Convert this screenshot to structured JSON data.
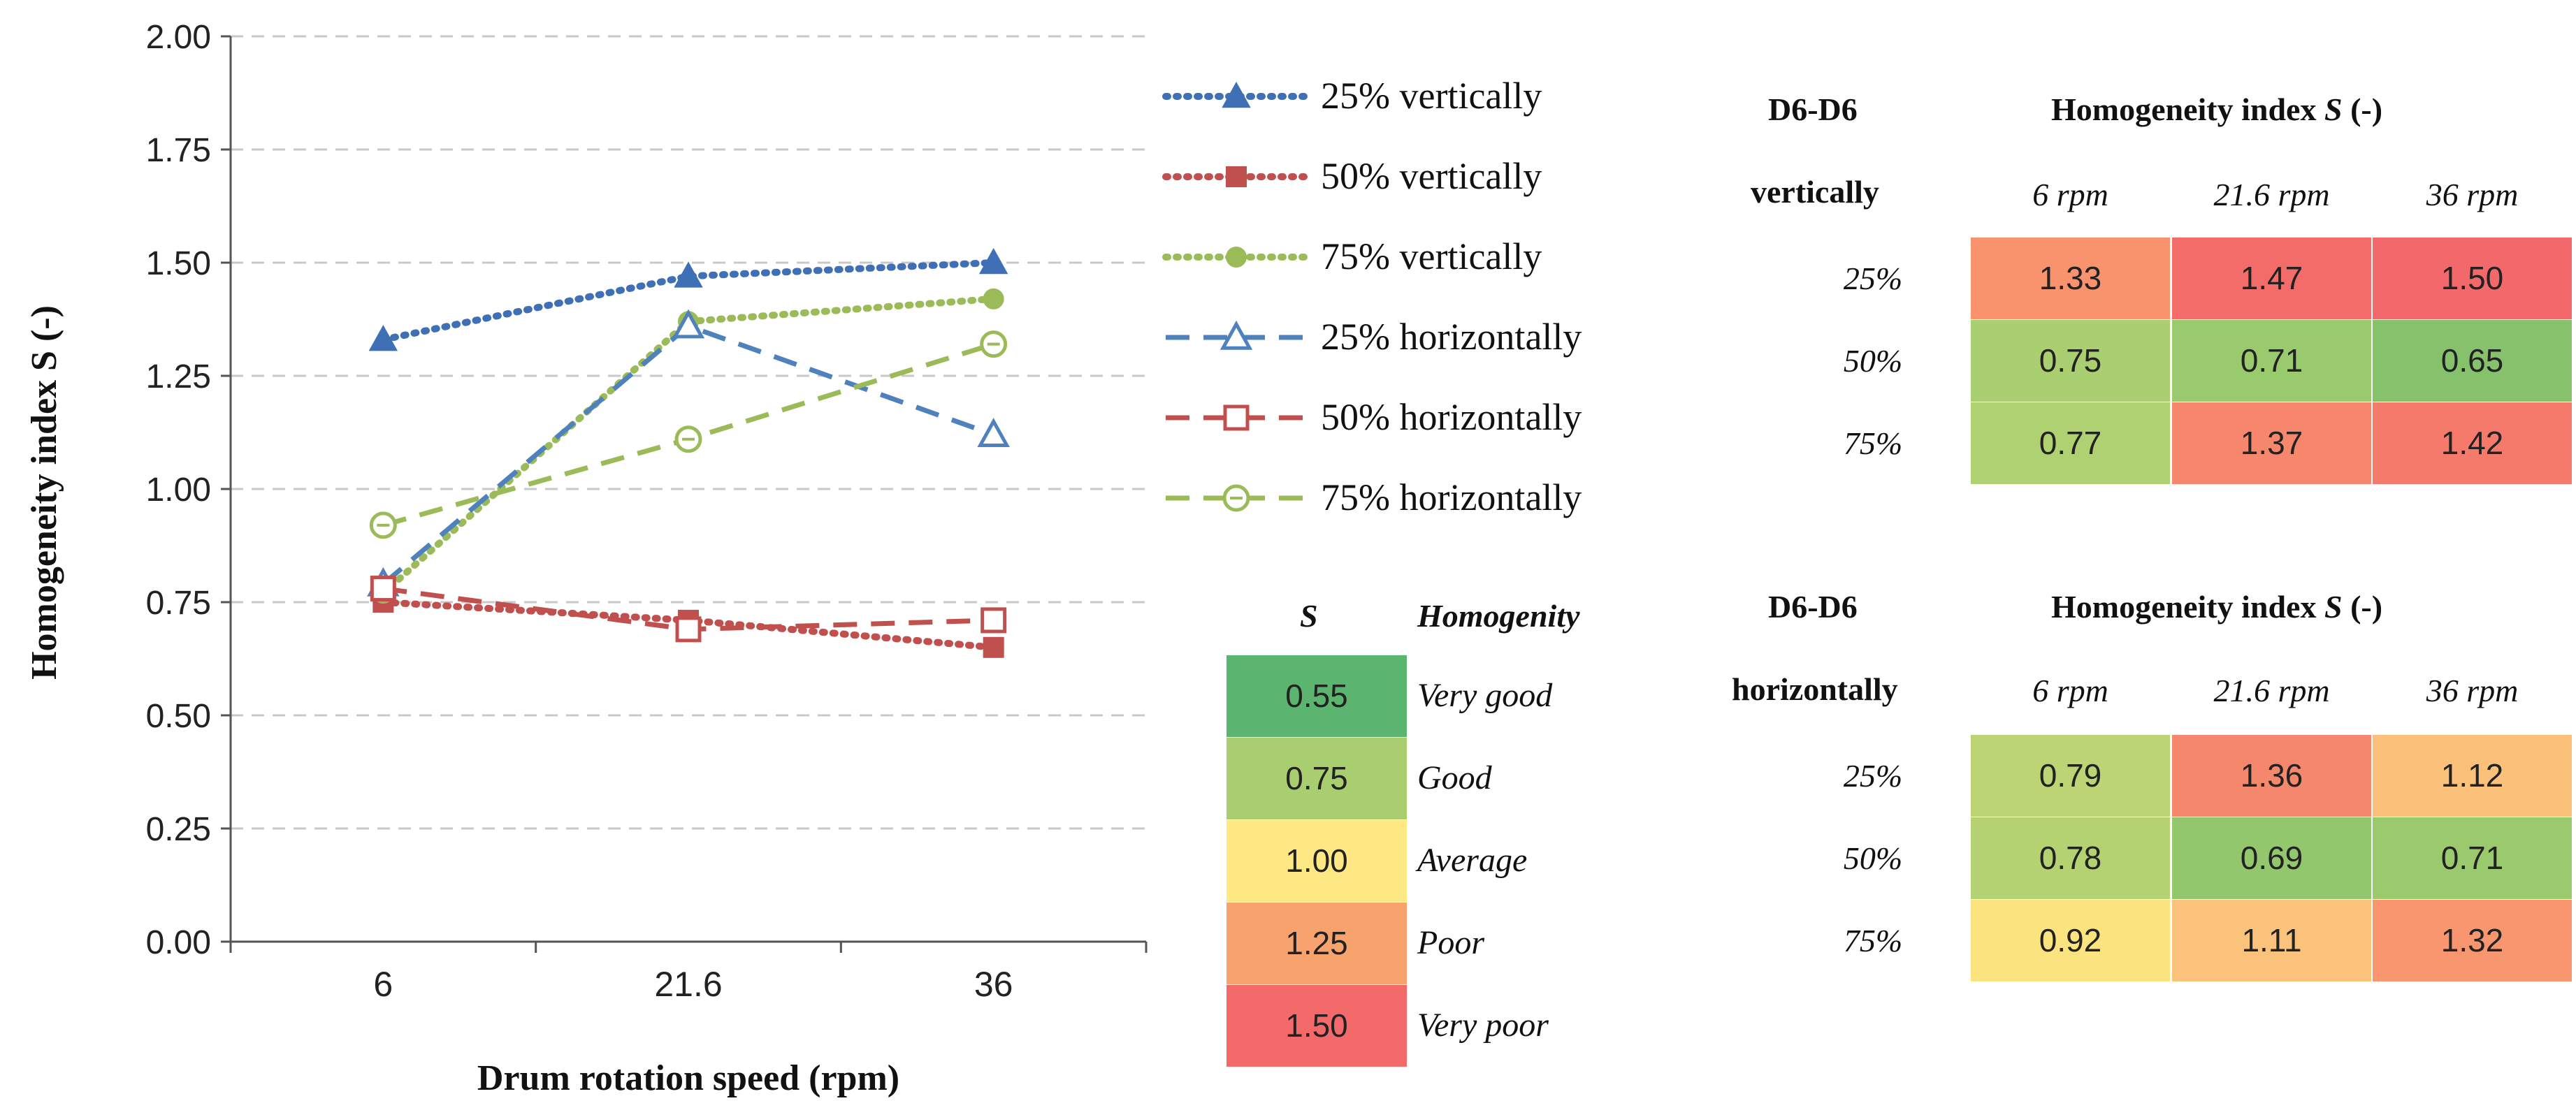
{
  "chart_data": {
    "type": "line",
    "title": "",
    "xlabel": "Drum rotation speed (rpm)",
    "ylabel": "Homogeneity index S (-)",
    "categories": [
      "6",
      "21.6",
      "36"
    ],
    "ylim": [
      0,
      2
    ],
    "yticks": [
      "0.00",
      "0.25",
      "0.50",
      "0.75",
      "1.00",
      "1.25",
      "1.50",
      "1.75",
      "2.00"
    ],
    "grid": "horizontal dashed",
    "legend_position": "right",
    "series": [
      {
        "name": "25% vertically",
        "values": [
          1.33,
          1.47,
          1.5
        ],
        "color": "#3F6FB5",
        "dash": "dotted",
        "marker": "triangle-filled"
      },
      {
        "name": "50% vertically",
        "values": [
          0.75,
          0.71,
          0.65
        ],
        "color": "#C0504D",
        "dash": "dotted",
        "marker": "square-filled"
      },
      {
        "name": "75% vertically",
        "values": [
          0.77,
          1.37,
          1.42
        ],
        "color": "#9BBB59",
        "dash": "dotted",
        "marker": "circle-filled"
      },
      {
        "name": "25% horizontally",
        "values": [
          0.79,
          1.36,
          1.12
        ],
        "color": "#4F81BD",
        "dash": "dashed",
        "marker": "triangle-open"
      },
      {
        "name": "50% horizontally",
        "values": [
          0.78,
          0.69,
          0.71
        ],
        "color": "#C0504D",
        "dash": "dashed",
        "marker": "square-open"
      },
      {
        "name": "75% horizontally",
        "values": [
          0.92,
          1.11,
          1.32
        ],
        "color": "#9BBB59",
        "dash": "dashed",
        "marker": "circle-open"
      }
    ]
  },
  "scale": {
    "header_s": "S",
    "header_label": "Homogenity",
    "rows": [
      {
        "value": "0.55",
        "label": "Very good",
        "color": "#5BB56E"
      },
      {
        "value": "0.75",
        "label": "Good",
        "color": "#A9CE6F"
      },
      {
        "value": "1.00",
        "label": "Average",
        "color": "#FDE883"
      },
      {
        "value": "1.25",
        "label": "Poor",
        "color": "#F8A26E"
      },
      {
        "value": "1.50",
        "label": "Very poor",
        "color": "#F46A6B"
      }
    ]
  },
  "table_vertical": {
    "label1": "D6-D6",
    "label2": "vertically",
    "title_prefix": "Homogeneity index ",
    "title_sym": "S",
    "title_suffix": " (-)",
    "columns": [
      "6 rpm",
      "21.6 rpm",
      "36 rpm"
    ],
    "rows": [
      {
        "label": "25%",
        "cells": [
          {
            "v": "1.33",
            "c": "#F8936E"
          },
          {
            "v": "1.47",
            "c": "#F46C6A"
          },
          {
            "v": "1.50",
            "c": "#F3686A"
          }
        ]
      },
      {
        "label": "50%",
        "cells": [
          {
            "v": "0.75",
            "c": "#A9CF70"
          },
          {
            "v": "0.71",
            "c": "#9ACA6E"
          },
          {
            "v": "0.65",
            "c": "#86C26B"
          }
        ]
      },
      {
        "label": "75%",
        "cells": [
          {
            "v": "0.77",
            "c": "#B0D171"
          },
          {
            "v": "1.37",
            "c": "#F6876C"
          },
          {
            "v": "1.42",
            "c": "#F57A6B"
          }
        ]
      }
    ]
  },
  "table_horizontal": {
    "label1": "D6-D6",
    "label2": "horizontally",
    "title_prefix": "Homogeneity index ",
    "title_sym": "S",
    "title_suffix": " (-)",
    "columns": [
      "6 rpm",
      "21.6 rpm",
      "36 rpm"
    ],
    "rows": [
      {
        "label": "25%",
        "cells": [
          {
            "v": "0.79",
            "c": "#BCD473"
          },
          {
            "v": "1.36",
            "c": "#F5876C"
          },
          {
            "v": "1.12",
            "c": "#FBC07A"
          }
        ]
      },
      {
        "label": "50%",
        "cells": [
          {
            "v": "0.78",
            "c": "#B5D272"
          },
          {
            "v": "0.69",
            "c": "#92C76D"
          },
          {
            "v": "0.71",
            "c": "#9BCA6E"
          }
        ]
      },
      {
        "label": "75%",
        "cells": [
          {
            "v": "0.92",
            "c": "#FBE37F"
          },
          {
            "v": "1.11",
            "c": "#FBC27B"
          },
          {
            "v": "1.32",
            "c": "#F8976F"
          }
        ]
      }
    ]
  }
}
